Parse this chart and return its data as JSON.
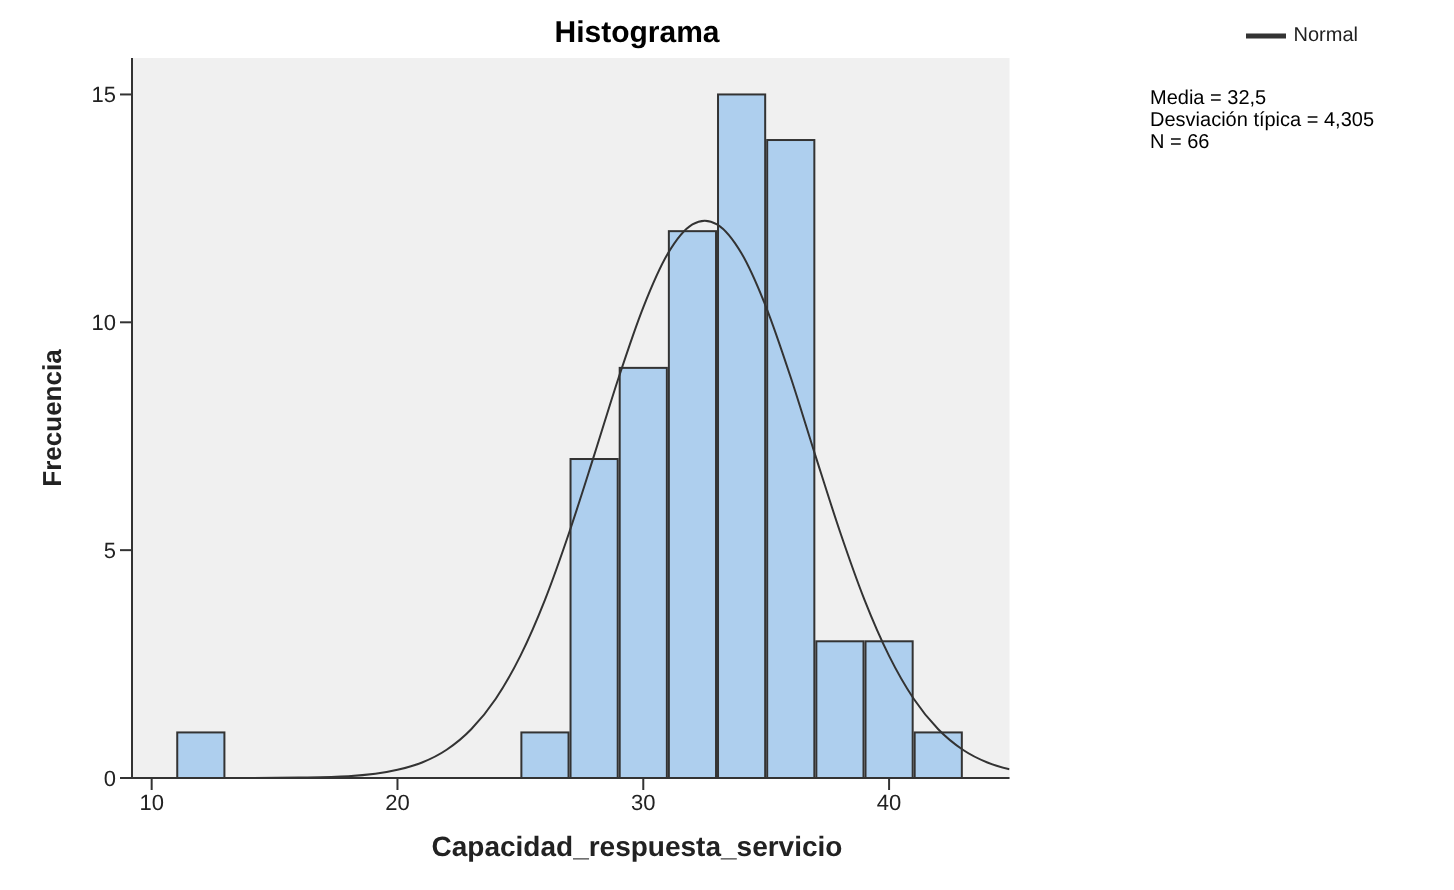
{
  "chart_data": {
    "type": "histogram",
    "title": "Histograma",
    "xlabel": "Capacidad_respuesta_servicio",
    "ylabel": "Frecuencia",
    "bins": [
      11,
      13,
      15,
      17,
      19,
      21,
      23,
      25,
      27,
      29,
      31,
      33,
      35,
      37,
      39,
      41,
      43
    ],
    "values": [
      1,
      0,
      0,
      0,
      0,
      0,
      0,
      1,
      7,
      9,
      12,
      15,
      14,
      3,
      3,
      1
    ],
    "color": "#aecfee",
    "series": [
      {
        "type": "line",
        "name": "Normal",
        "color": "#333333",
        "x": [
          10,
          12,
          14,
          16,
          18,
          20,
          21,
          22,
          23,
          24,
          25,
          26,
          27,
          28,
          29,
          30,
          31,
          32,
          32.5,
          33,
          34,
          35,
          36,
          37,
          38,
          39,
          40,
          41,
          42,
          43,
          44,
          44.9
        ],
        "values": [
          0,
          0,
          0,
          0.01,
          0.04,
          0.18,
          0.34,
          0.62,
          1.07,
          1.74,
          2.68,
          3.91,
          5.41,
          7.08,
          8.79,
          10.33,
          11.51,
          12.15,
          12.23,
          12.15,
          11.51,
          10.33,
          8.79,
          7.08,
          5.41,
          3.91,
          2.68,
          1.74,
          1.07,
          0.62,
          0.34,
          0.19
        ]
      }
    ],
    "xlim": [
      9.2,
      44.9
    ],
    "xticks": [
      10,
      20,
      30,
      40
    ],
    "ylim": [
      0,
      15.8
    ],
    "yticks": [
      0,
      5,
      10,
      15
    ],
    "legend": "top right",
    "marker": "none",
    "annotations": [
      "Media = 32,5",
      "Desviación típica = 4,305",
      "N = 66"
    ]
  }
}
